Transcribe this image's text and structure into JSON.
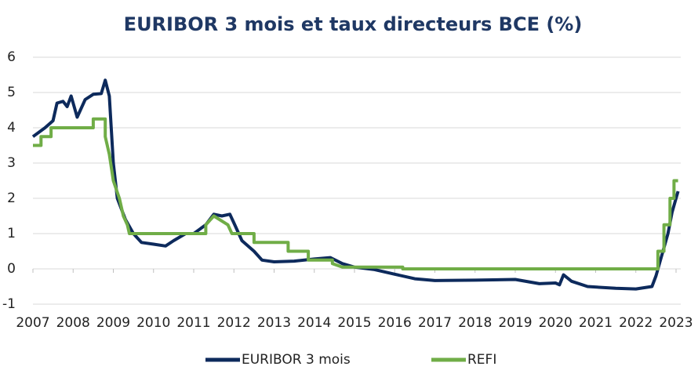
{
  "chart_data": {
    "type": "line",
    "title": "EURIBOR 3 mois et taux directeurs BCE (%)",
    "series": [
      {
        "name": "EURIBOR 3 mois",
        "color": "#0d2a5c",
        "x": [
          2007.0,
          2007.3,
          2007.5,
          2007.6,
          2007.75,
          2007.85,
          2007.95,
          2008.1,
          2008.3,
          2008.5,
          2008.7,
          2008.8,
          2008.9,
          2009.0,
          2009.1,
          2009.3,
          2009.5,
          2009.7,
          2010.0,
          2010.3,
          2010.5,
          2010.8,
          2011.0,
          2011.3,
          2011.5,
          2011.7,
          2011.9,
          2012.0,
          2012.2,
          2012.5,
          2012.7,
          2013.0,
          2013.5,
          2014.0,
          2014.4,
          2014.7,
          2015.0,
          2015.5,
          2016.0,
          2016.5,
          2017.0,
          2018.0,
          2019.0,
          2019.6,
          2020.0,
          2020.1,
          2020.2,
          2020.4,
          2020.8,
          2021.5,
          2022.0,
          2022.4,
          2022.5,
          2022.6,
          2022.8,
          2022.9,
          2023.0,
          2023.05
        ],
        "values": [
          3.75,
          4.0,
          4.2,
          4.7,
          4.75,
          4.6,
          4.9,
          4.3,
          4.8,
          4.95,
          4.97,
          5.35,
          4.9,
          3.0,
          2.0,
          1.4,
          1.0,
          0.75,
          0.7,
          0.65,
          0.8,
          1.0,
          1.0,
          1.25,
          1.55,
          1.5,
          1.55,
          1.3,
          0.8,
          0.5,
          0.25,
          0.2,
          0.22,
          0.28,
          0.32,
          0.15,
          0.05,
          -0.02,
          -0.15,
          -0.28,
          -0.33,
          -0.32,
          -0.3,
          -0.42,
          -0.4,
          -0.45,
          -0.17,
          -0.35,
          -0.5,
          -0.55,
          -0.57,
          -0.5,
          -0.2,
          0.2,
          1.0,
          1.6,
          2.0,
          2.2
        ]
      },
      {
        "name": "REFI",
        "color": "#70ad47",
        "x": [
          2007.0,
          2007.2,
          2007.2,
          2007.45,
          2007.45,
          2008.5,
          2008.5,
          2008.8,
          2008.8,
          2008.9,
          2009.0,
          2009.15,
          2009.25,
          2009.35,
          2009.4,
          2011.3,
          2011.3,
          2011.5,
          2011.85,
          2011.95,
          2012.5,
          2012.5,
          2013.35,
          2013.35,
          2013.85,
          2013.85,
          2014.45,
          2014.45,
          2014.7,
          2016.2,
          2016.2,
          2022.55,
          2022.55,
          2022.7,
          2022.7,
          2022.85,
          2022.85,
          2022.95,
          2022.95,
          2023.05
        ],
        "values": [
          3.5,
          3.5,
          3.75,
          3.75,
          4.0,
          4.0,
          4.25,
          4.25,
          3.75,
          3.25,
          2.5,
          2.0,
          1.5,
          1.25,
          1.0,
          1.0,
          1.25,
          1.5,
          1.25,
          1.0,
          1.0,
          0.75,
          0.75,
          0.5,
          0.5,
          0.25,
          0.25,
          0.15,
          0.05,
          0.05,
          0,
          0,
          0.5,
          0.5,
          1.25,
          1.25,
          2.0,
          2.0,
          2.5,
          2.5
        ]
      }
    ],
    "xlim": [
      2007,
      2023.1
    ],
    "xticks": [
      2007,
      2008,
      2009,
      2010,
      2011,
      2012,
      2013,
      2014,
      2015,
      2016,
      2017,
      2018,
      2019,
      2020,
      2021,
      2022,
      2023
    ],
    "ylim": [
      -1,
      6
    ],
    "yticks": [
      -1,
      0,
      1,
      2,
      3,
      4,
      5,
      6
    ],
    "grid": true,
    "legend": "bottom"
  }
}
